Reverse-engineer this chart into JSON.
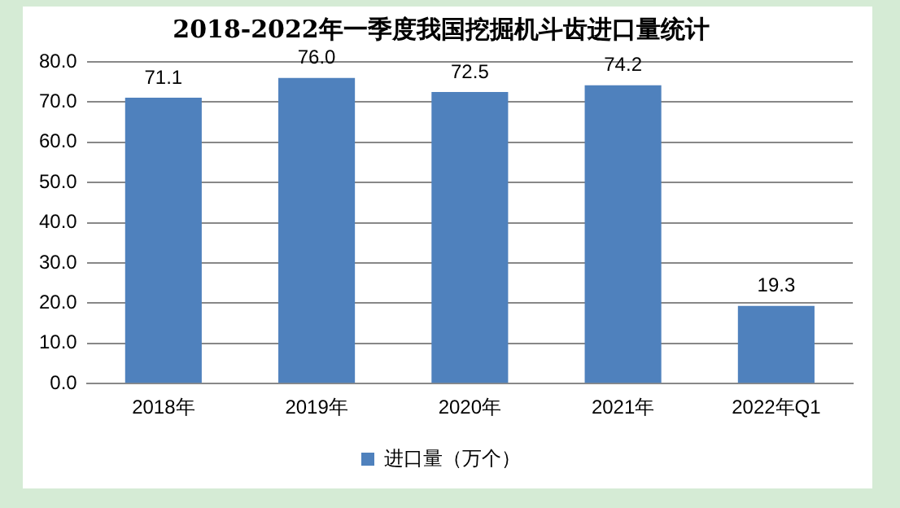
{
  "chart_data": {
    "type": "bar",
    "title": "2018-2022年一季度我国挖掘机斗齿进口量统计",
    "categories": [
      "2018年",
      "2019年",
      "2020年",
      "2021年",
      "2022年Q1"
    ],
    "series": [
      {
        "name": "进口量（万个）",
        "color": "#4f81bd",
        "values": [
          71.1,
          76.0,
          72.5,
          74.2,
          19.3
        ],
        "value_labels": [
          "71.1",
          "76.0",
          "72.5",
          "74.2",
          "19.3"
        ]
      }
    ],
    "ylim": [
      0,
      80
    ],
    "yticks": [
      {
        "value": 0,
        "label": "0.0"
      },
      {
        "value": 10,
        "label": "10.0"
      },
      {
        "value": 20,
        "label": "20.0"
      },
      {
        "value": 30,
        "label": "30.0"
      },
      {
        "value": 40,
        "label": "40.0"
      },
      {
        "value": 50,
        "label": "50.0"
      },
      {
        "value": 60,
        "label": "60.0"
      },
      {
        "value": 70,
        "label": "70.0"
      },
      {
        "value": 80,
        "label": "80.0"
      }
    ],
    "grid": "y",
    "legend": "bottom"
  }
}
